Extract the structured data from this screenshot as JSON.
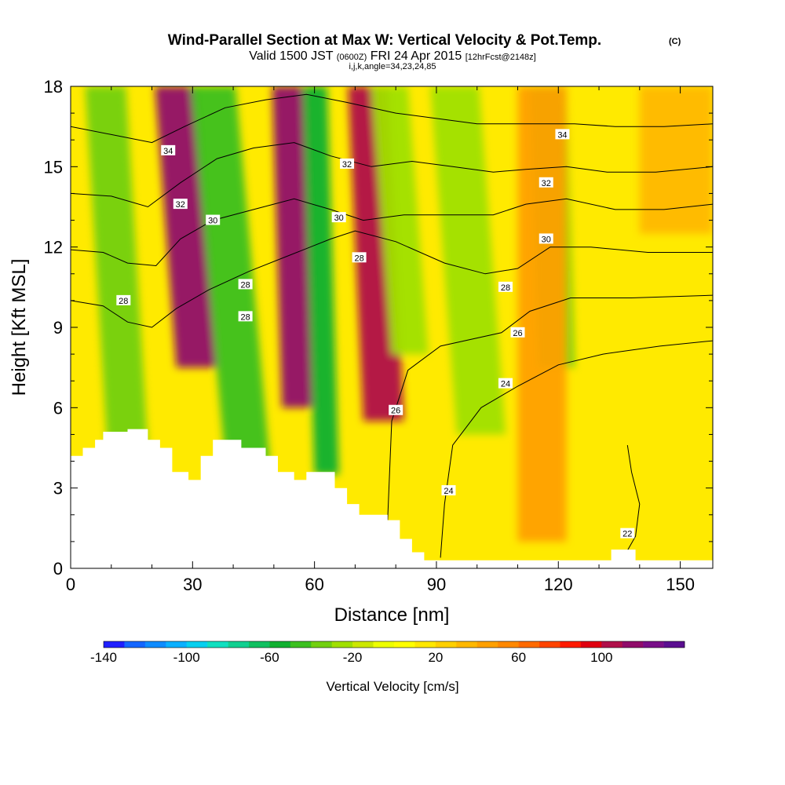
{
  "chart_data": {
    "type": "heatmap",
    "title": "Wind-Parallel Section at Max W: Vertical Velocity & Pot.Temp.",
    "title_mark": "(C)",
    "subtitle": {
      "valid": "Valid 1500 JST",
      "zulu": "(0600Z)",
      "date": "FRI 24 Apr 2015",
      "fcst": "[12hrFcst@2148z]"
    },
    "params": "i,j,k,angle=34,23,24,85",
    "xlabel": "Distance [nm]",
    "ylabel": "Height [Kft MSL]",
    "xlim": [
      0,
      158
    ],
    "ylim": [
      0,
      18
    ],
    "x_ticks": [
      "0",
      "30",
      "60",
      "90",
      "120",
      "150"
    ],
    "y_ticks": [
      "0",
      "3",
      "6",
      "9",
      "12",
      "15",
      "18"
    ],
    "colorbar": {
      "label": "Vertical Velocity [cm/s]",
      "min": -140,
      "max": 140,
      "step": 10,
      "tick_labels": [
        "-140",
        "-100",
        "-60",
        "-20",
        "20",
        "60",
        "100"
      ],
      "colors": [
        "#1f1fff",
        "#1466ff",
        "#0f8cff",
        "#0bb0ff",
        "#06d0f0",
        "#10e0c0",
        "#11d090",
        "#10c060",
        "#10b030",
        "#3cc020",
        "#72d010",
        "#a0e000",
        "#cce800",
        "#eeff00",
        "#ffff00",
        "#ffe800",
        "#ffd000",
        "#ffb800",
        "#ffa000",
        "#ff8800",
        "#ff6a00",
        "#ff4400",
        "#ff1a00",
        "#e00010",
        "#b0104a",
        "#900c6a",
        "#780e88",
        "#5a0e90"
      ]
    },
    "terrain": [
      [
        0,
        4.2
      ],
      [
        3,
        4.2
      ],
      [
        3,
        4.5
      ],
      [
        6,
        4.5
      ],
      [
        6,
        4.8
      ],
      [
        8,
        4.8
      ],
      [
        8,
        5.1
      ],
      [
        14,
        5.1
      ],
      [
        14,
        5.2
      ],
      [
        19,
        5.2
      ],
      [
        19,
        4.8
      ],
      [
        22,
        4.8
      ],
      [
        22,
        4.5
      ],
      [
        25,
        4.5
      ],
      [
        25,
        3.6
      ],
      [
        29,
        3.6
      ],
      [
        29,
        3.3
      ],
      [
        32,
        3.3
      ],
      [
        32,
        4.2
      ],
      [
        35,
        4.2
      ],
      [
        35,
        4.8
      ],
      [
        42,
        4.8
      ],
      [
        42,
        4.5
      ],
      [
        48,
        4.5
      ],
      [
        48,
        4.2
      ],
      [
        51,
        4.2
      ],
      [
        51,
        3.6
      ],
      [
        55,
        3.6
      ],
      [
        55,
        3.3
      ],
      [
        58,
        3.3
      ],
      [
        58,
        3.6
      ],
      [
        65,
        3.6
      ],
      [
        65,
        3.0
      ],
      [
        68,
        3.0
      ],
      [
        68,
        2.4
      ],
      [
        71,
        2.4
      ],
      [
        71,
        2.0
      ],
      [
        78,
        2.0
      ],
      [
        78,
        1.8
      ],
      [
        81,
        1.8
      ],
      [
        81,
        1.1
      ],
      [
        84,
        1.1
      ],
      [
        84,
        0.6
      ],
      [
        87,
        0.6
      ],
      [
        87,
        0.3
      ],
      [
        133,
        0.3
      ],
      [
        133,
        0.7
      ],
      [
        139,
        0.7
      ],
      [
        139,
        0.3
      ],
      [
        158,
        0.3
      ]
    ],
    "w_bands": [
      {
        "x0": 26,
        "x1": 36,
        "tilt": 0.5,
        "zmin": 7.5,
        "value": 110
      },
      {
        "x0": 9,
        "x1": 19,
        "tilt": 0.4,
        "zmin": 4.5,
        "value": -40
      },
      {
        "x0": 38,
        "x1": 49,
        "tilt": 0.6,
        "zmin": 4.0,
        "value": -50
      },
      {
        "x0": 52,
        "x1": 60,
        "tilt": 0.2,
        "zmin": 6.0,
        "value": 110
      },
      {
        "x0": 60,
        "x1": 66,
        "tilt": 0.2,
        "zmin": 3.5,
        "value": -60
      },
      {
        "x0": 72,
        "x1": 82,
        "tilt": 0.3,
        "zmin": 5.5,
        "value": 100
      },
      {
        "x0": 79,
        "x1": 88,
        "tilt": 0.5,
        "zmin": 8.0,
        "value": -30
      },
      {
        "x0": 95,
        "x1": 107,
        "tilt": 0.5,
        "zmin": 5.0,
        "value": -30
      },
      {
        "x0": 115,
        "x1": 124,
        "tilt": 0.2,
        "zmin": 7.5,
        "value": -40
      },
      {
        "x0": 110,
        "x1": 122,
        "tilt": 0.0,
        "zmin": 1.0,
        "value": 40
      },
      {
        "x0": 140,
        "x1": 158,
        "tilt": 0.0,
        "zmin": 12.5,
        "value": 30
      }
    ],
    "isentropes": [
      {
        "level": 22,
        "points": [
          [
            136,
            0.4
          ],
          [
            139,
            1.2
          ],
          [
            140,
            2.4
          ],
          [
            138,
            3.6
          ],
          [
            137,
            4.6
          ]
        ]
      },
      {
        "level": 24,
        "points": [
          [
            91,
            0.4
          ],
          [
            92,
            2.4
          ],
          [
            94,
            4.6
          ],
          [
            101,
            6.0
          ],
          [
            110,
            6.8
          ],
          [
            120,
            7.6
          ],
          [
            131,
            8.0
          ],
          [
            145,
            8.3
          ],
          [
            158,
            8.5
          ]
        ]
      },
      {
        "level": 26,
        "points": [
          [
            78,
            1.8
          ],
          [
            79,
            5.5
          ],
          [
            83,
            7.4
          ],
          [
            91,
            8.3
          ],
          [
            106,
            8.8
          ],
          [
            113,
            9.6
          ],
          [
            123,
            10.1
          ],
          [
            138,
            10.1
          ],
          [
            158,
            10.2
          ]
        ]
      },
      {
        "level": 28,
        "points": [
          [
            0,
            10.0
          ],
          [
            8,
            9.8
          ],
          [
            14,
            9.2
          ],
          [
            20,
            9.0
          ],
          [
            26,
            9.7
          ],
          [
            34,
            10.4
          ],
          [
            44,
            11.1
          ],
          [
            54,
            11.7
          ],
          [
            64,
            12.3
          ],
          [
            70,
            12.6
          ],
          [
            80,
            12.2
          ],
          [
            92,
            11.4
          ],
          [
            102,
            11.0
          ],
          [
            110,
            11.2
          ],
          [
            118,
            12.0
          ],
          [
            128,
            12.0
          ],
          [
            142,
            11.8
          ],
          [
            158,
            11.8
          ]
        ]
      },
      {
        "level": 30,
        "points": [
          [
            0,
            11.9
          ],
          [
            8,
            11.8
          ],
          [
            14,
            11.4
          ],
          [
            21,
            11.3
          ],
          [
            27,
            12.3
          ],
          [
            35,
            13.0
          ],
          [
            45,
            13.4
          ],
          [
            55,
            13.8
          ],
          [
            64,
            13.4
          ],
          [
            72,
            13.0
          ],
          [
            82,
            13.2
          ],
          [
            94,
            13.2
          ],
          [
            104,
            13.2
          ],
          [
            112,
            13.6
          ],
          [
            122,
            13.8
          ],
          [
            134,
            13.4
          ],
          [
            146,
            13.4
          ],
          [
            158,
            13.6
          ]
        ]
      },
      {
        "level": 32,
        "points": [
          [
            0,
            14.0
          ],
          [
            10,
            13.9
          ],
          [
            19,
            13.5
          ],
          [
            27,
            14.4
          ],
          [
            36,
            15.3
          ],
          [
            45,
            15.7
          ],
          [
            55,
            15.9
          ],
          [
            64,
            15.4
          ],
          [
            74,
            15.0
          ],
          [
            84,
            15.2
          ],
          [
            94,
            15.0
          ],
          [
            104,
            14.8
          ],
          [
            112,
            14.9
          ],
          [
            122,
            15.0
          ],
          [
            132,
            14.8
          ],
          [
            144,
            14.8
          ],
          [
            158,
            15.0
          ]
        ]
      },
      {
        "level": 34,
        "points": [
          [
            0,
            16.5
          ],
          [
            10,
            16.2
          ],
          [
            20,
            15.9
          ],
          [
            28,
            16.5
          ],
          [
            38,
            17.2
          ],
          [
            48,
            17.5
          ],
          [
            58,
            17.7
          ],
          [
            68,
            17.4
          ],
          [
            80,
            17.0
          ],
          [
            90,
            16.8
          ],
          [
            100,
            16.6
          ],
          [
            112,
            16.6
          ],
          [
            124,
            16.6
          ],
          [
            134,
            16.5
          ],
          [
            146,
            16.5
          ],
          [
            158,
            16.6
          ]
        ]
      }
    ],
    "contour_labels": [
      {
        "text": "34",
        "x": 24,
        "y": 15.6
      },
      {
        "text": "32",
        "x": 27,
        "y": 13.6
      },
      {
        "text": "30",
        "x": 35,
        "y": 13.0
      },
      {
        "text": "28",
        "x": 43,
        "y": 10.6
      },
      {
        "text": "28",
        "x": 43,
        "y": 9.4
      },
      {
        "text": "28",
        "x": 13,
        "y": 10.0
      },
      {
        "text": "32",
        "x": 68,
        "y": 15.1
      },
      {
        "text": "30",
        "x": 66,
        "y": 13.1
      },
      {
        "text": "28",
        "x": 71,
        "y": 11.6
      },
      {
        "text": "26",
        "x": 80,
        "y": 5.9
      },
      {
        "text": "24",
        "x": 93,
        "y": 2.9
      },
      {
        "text": "24",
        "x": 107,
        "y": 6.9
      },
      {
        "text": "26",
        "x": 110,
        "y": 8.8
      },
      {
        "text": "28",
        "x": 107,
        "y": 10.5
      },
      {
        "text": "30",
        "x": 117,
        "y": 12.3
      },
      {
        "text": "32",
        "x": 117,
        "y": 14.4
      },
      {
        "text": "34",
        "x": 121,
        "y": 16.2
      },
      {
        "text": "22",
        "x": 137,
        "y": 1.3
      }
    ]
  }
}
